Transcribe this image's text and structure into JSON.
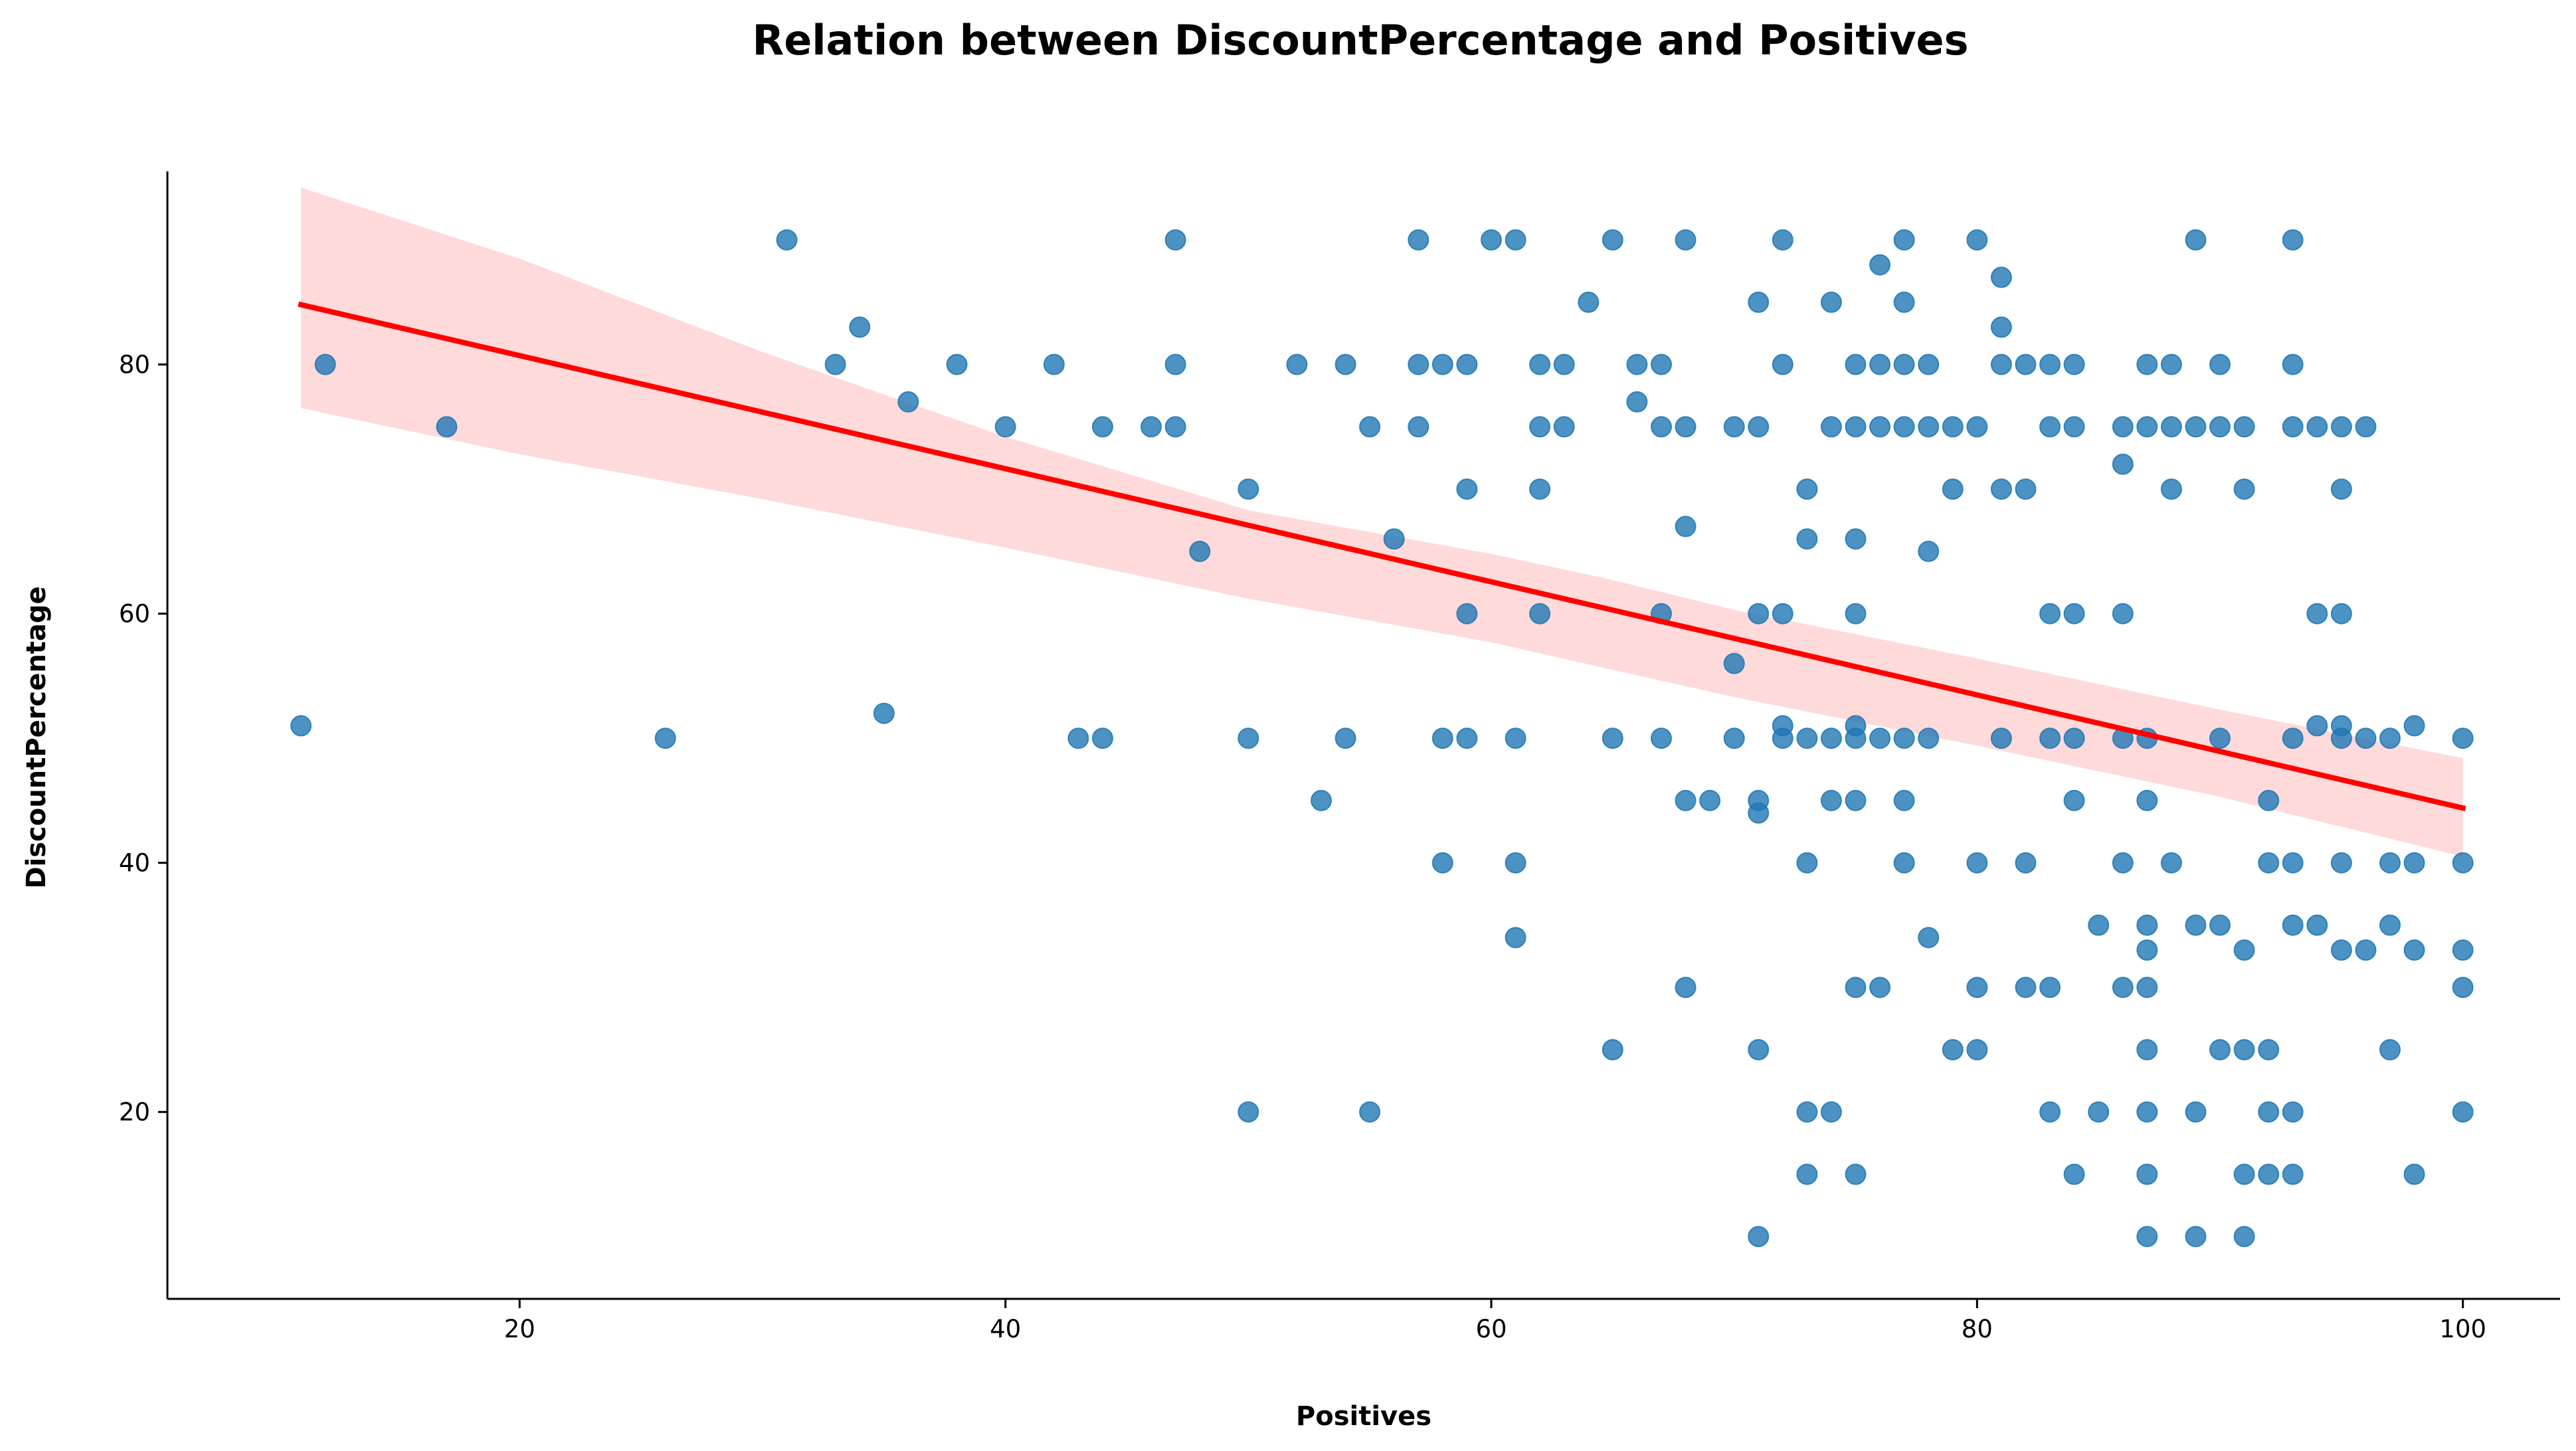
{
  "chart_data": {
    "type": "scatter",
    "title": "Relation between DiscountPercentage and Positives",
    "xlabel": "Positives",
    "ylabel": "DiscountPercentage",
    "xlim": [
      5.5,
      104
    ],
    "ylim": [
      5,
      95.5
    ],
    "xticks": [
      20,
      40,
      60,
      80,
      100
    ],
    "yticks": [
      20,
      40,
      60,
      80
    ],
    "grid": false,
    "colors": {
      "points": "#1f77b4",
      "regression_line": "#ff0000",
      "confidence_band": "#ffd6d6"
    },
    "regression": {
      "x": [
        11,
        100
      ],
      "y": [
        84.8,
        44.4
      ]
    },
    "confidence_band": {
      "x": [
        11,
        20,
        30,
        40,
        50,
        60,
        65,
        70,
        80,
        90,
        100
      ],
      "upper": [
        94.2,
        88.5,
        81.0,
        74.2,
        68.3,
        64.8,
        62.7,
        60.3,
        56.4,
        52.3,
        48.4
      ],
      "lower": [
        76.5,
        72.8,
        69.2,
        65.3,
        61.2,
        57.7,
        55.5,
        53.3,
        49.4,
        45.3,
        40.5
      ]
    },
    "points": [
      [
        11,
        51
      ],
      [
        12,
        80
      ],
      [
        17,
        75
      ],
      [
        26,
        50
      ],
      [
        31,
        90
      ],
      [
        33,
        80
      ],
      [
        34,
        83
      ],
      [
        35,
        52
      ],
      [
        36,
        77
      ],
      [
        38,
        80
      ],
      [
        40,
        75
      ],
      [
        42,
        80
      ],
      [
        43,
        50
      ],
      [
        44,
        50
      ],
      [
        44,
        75
      ],
      [
        46,
        75
      ],
      [
        47,
        90
      ],
      [
        47,
        80
      ],
      [
        47,
        75
      ],
      [
        48,
        65
      ],
      [
        50,
        70
      ],
      [
        50,
        50
      ],
      [
        50,
        20
      ],
      [
        52,
        80
      ],
      [
        53,
        45
      ],
      [
        54,
        80
      ],
      [
        54,
        50
      ],
      [
        55,
        75
      ],
      [
        55,
        20
      ],
      [
        56,
        66
      ],
      [
        57,
        90
      ],
      [
        57,
        80
      ],
      [
        57,
        75
      ],
      [
        58,
        80
      ],
      [
        58,
        50
      ],
      [
        58,
        40
      ],
      [
        59,
        80
      ],
      [
        59,
        70
      ],
      [
        59,
        60
      ],
      [
        59,
        50
      ],
      [
        60,
        90
      ],
      [
        61,
        90
      ],
      [
        61,
        50
      ],
      [
        61,
        40
      ],
      [
        61,
        34
      ],
      [
        62,
        80
      ],
      [
        62,
        75
      ],
      [
        62,
        70
      ],
      [
        62,
        60
      ],
      [
        63,
        80
      ],
      [
        63,
        75
      ],
      [
        64,
        85
      ],
      [
        65,
        90
      ],
      [
        65,
        50
      ],
      [
        65,
        25
      ],
      [
        66,
        80
      ],
      [
        66,
        77
      ],
      [
        67,
        80
      ],
      [
        67,
        75
      ],
      [
        67,
        60
      ],
      [
        67,
        50
      ],
      [
        68,
        90
      ],
      [
        68,
        75
      ],
      [
        68,
        67
      ],
      [
        68,
        45
      ],
      [
        68,
        30
      ],
      [
        69,
        45
      ],
      [
        70,
        75
      ],
      [
        70,
        56
      ],
      [
        70,
        50
      ],
      [
        71,
        85
      ],
      [
        71,
        75
      ],
      [
        71,
        60
      ],
      [
        71,
        45
      ],
      [
        71,
        44
      ],
      [
        71,
        25
      ],
      [
        71,
        10
      ],
      [
        72,
        90
      ],
      [
        72,
        80
      ],
      [
        72,
        60
      ],
      [
        72,
        51
      ],
      [
        72,
        50
      ],
      [
        73,
        70
      ],
      [
        73,
        66
      ],
      [
        73,
        50
      ],
      [
        73,
        40
      ],
      [
        73,
        20
      ],
      [
        73,
        15
      ],
      [
        74,
        85
      ],
      [
        74,
        75
      ],
      [
        74,
        50
      ],
      [
        74,
        45
      ],
      [
        74,
        20
      ],
      [
        75,
        80
      ],
      [
        75,
        75
      ],
      [
        75,
        66
      ],
      [
        75,
        60
      ],
      [
        75,
        51
      ],
      [
        75,
        50
      ],
      [
        75,
        45
      ],
      [
        75,
        30
      ],
      [
        75,
        15
      ],
      [
        76,
        88
      ],
      [
        76,
        80
      ],
      [
        76,
        75
      ],
      [
        76,
        50
      ],
      [
        76,
        30
      ],
      [
        77,
        90
      ],
      [
        77,
        85
      ],
      [
        77,
        80
      ],
      [
        77,
        75
      ],
      [
        77,
        50
      ],
      [
        77,
        45
      ],
      [
        77,
        40
      ],
      [
        78,
        80
      ],
      [
        78,
        75
      ],
      [
        78,
        65
      ],
      [
        78,
        50
      ],
      [
        78,
        34
      ],
      [
        79,
        75
      ],
      [
        79,
        70
      ],
      [
        79,
        25
      ],
      [
        80,
        90
      ],
      [
        80,
        75
      ],
      [
        80,
        40
      ],
      [
        80,
        30
      ],
      [
        80,
        25
      ],
      [
        81,
        87
      ],
      [
        81,
        83
      ],
      [
        81,
        80
      ],
      [
        81,
        70
      ],
      [
        81,
        50
      ],
      [
        82,
        80
      ],
      [
        82,
        70
      ],
      [
        82,
        40
      ],
      [
        82,
        30
      ],
      [
        83,
        80
      ],
      [
        83,
        75
      ],
      [
        83,
        60
      ],
      [
        83,
        50
      ],
      [
        83,
        30
      ],
      [
        83,
        20
      ],
      [
        84,
        80
      ],
      [
        84,
        75
      ],
      [
        84,
        60
      ],
      [
        84,
        50
      ],
      [
        84,
        45
      ],
      [
        84,
        15
      ],
      [
        85,
        35
      ],
      [
        85,
        20
      ],
      [
        86,
        75
      ],
      [
        86,
        72
      ],
      [
        86,
        60
      ],
      [
        86,
        50
      ],
      [
        86,
        40
      ],
      [
        86,
        30
      ],
      [
        87,
        80
      ],
      [
        87,
        75
      ],
      [
        87,
        50
      ],
      [
        87,
        45
      ],
      [
        87,
        35
      ],
      [
        87,
        33
      ],
      [
        87,
        30
      ],
      [
        87,
        25
      ],
      [
        87,
        20
      ],
      [
        87,
        15
      ],
      [
        87,
        10
      ],
      [
        88,
        80
      ],
      [
        88,
        75
      ],
      [
        88,
        70
      ],
      [
        88,
        40
      ],
      [
        89,
        90
      ],
      [
        89,
        75
      ],
      [
        89,
        35
      ],
      [
        89,
        20
      ],
      [
        89,
        10
      ],
      [
        90,
        80
      ],
      [
        90,
        75
      ],
      [
        90,
        50
      ],
      [
        90,
        35
      ],
      [
        90,
        25
      ],
      [
        91,
        75
      ],
      [
        91,
        70
      ],
      [
        91,
        33
      ],
      [
        91,
        25
      ],
      [
        91,
        15
      ],
      [
        91,
        10
      ],
      [
        92,
        45
      ],
      [
        92,
        40
      ],
      [
        92,
        25
      ],
      [
        92,
        20
      ],
      [
        92,
        15
      ],
      [
        93,
        90
      ],
      [
        93,
        80
      ],
      [
        93,
        75
      ],
      [
        93,
        50
      ],
      [
        93,
        40
      ],
      [
        93,
        35
      ],
      [
        93,
        20
      ],
      [
        93,
        15
      ],
      [
        94,
        75
      ],
      [
        94,
        60
      ],
      [
        94,
        51
      ],
      [
        94,
        35
      ],
      [
        95,
        75
      ],
      [
        95,
        70
      ],
      [
        95,
        60
      ],
      [
        95,
        51
      ],
      [
        95,
        50
      ],
      [
        95,
        40
      ],
      [
        95,
        33
      ],
      [
        96,
        75
      ],
      [
        96,
        50
      ],
      [
        96,
        33
      ],
      [
        97,
        50
      ],
      [
        97,
        40
      ],
      [
        97,
        35
      ],
      [
        97,
        25
      ],
      [
        98,
        51
      ],
      [
        98,
        40
      ],
      [
        98,
        33
      ],
      [
        98,
        15
      ],
      [
        100,
        50
      ],
      [
        100,
        40
      ],
      [
        100,
        33
      ],
      [
        100,
        30
      ],
      [
        100,
        20
      ]
    ]
  }
}
